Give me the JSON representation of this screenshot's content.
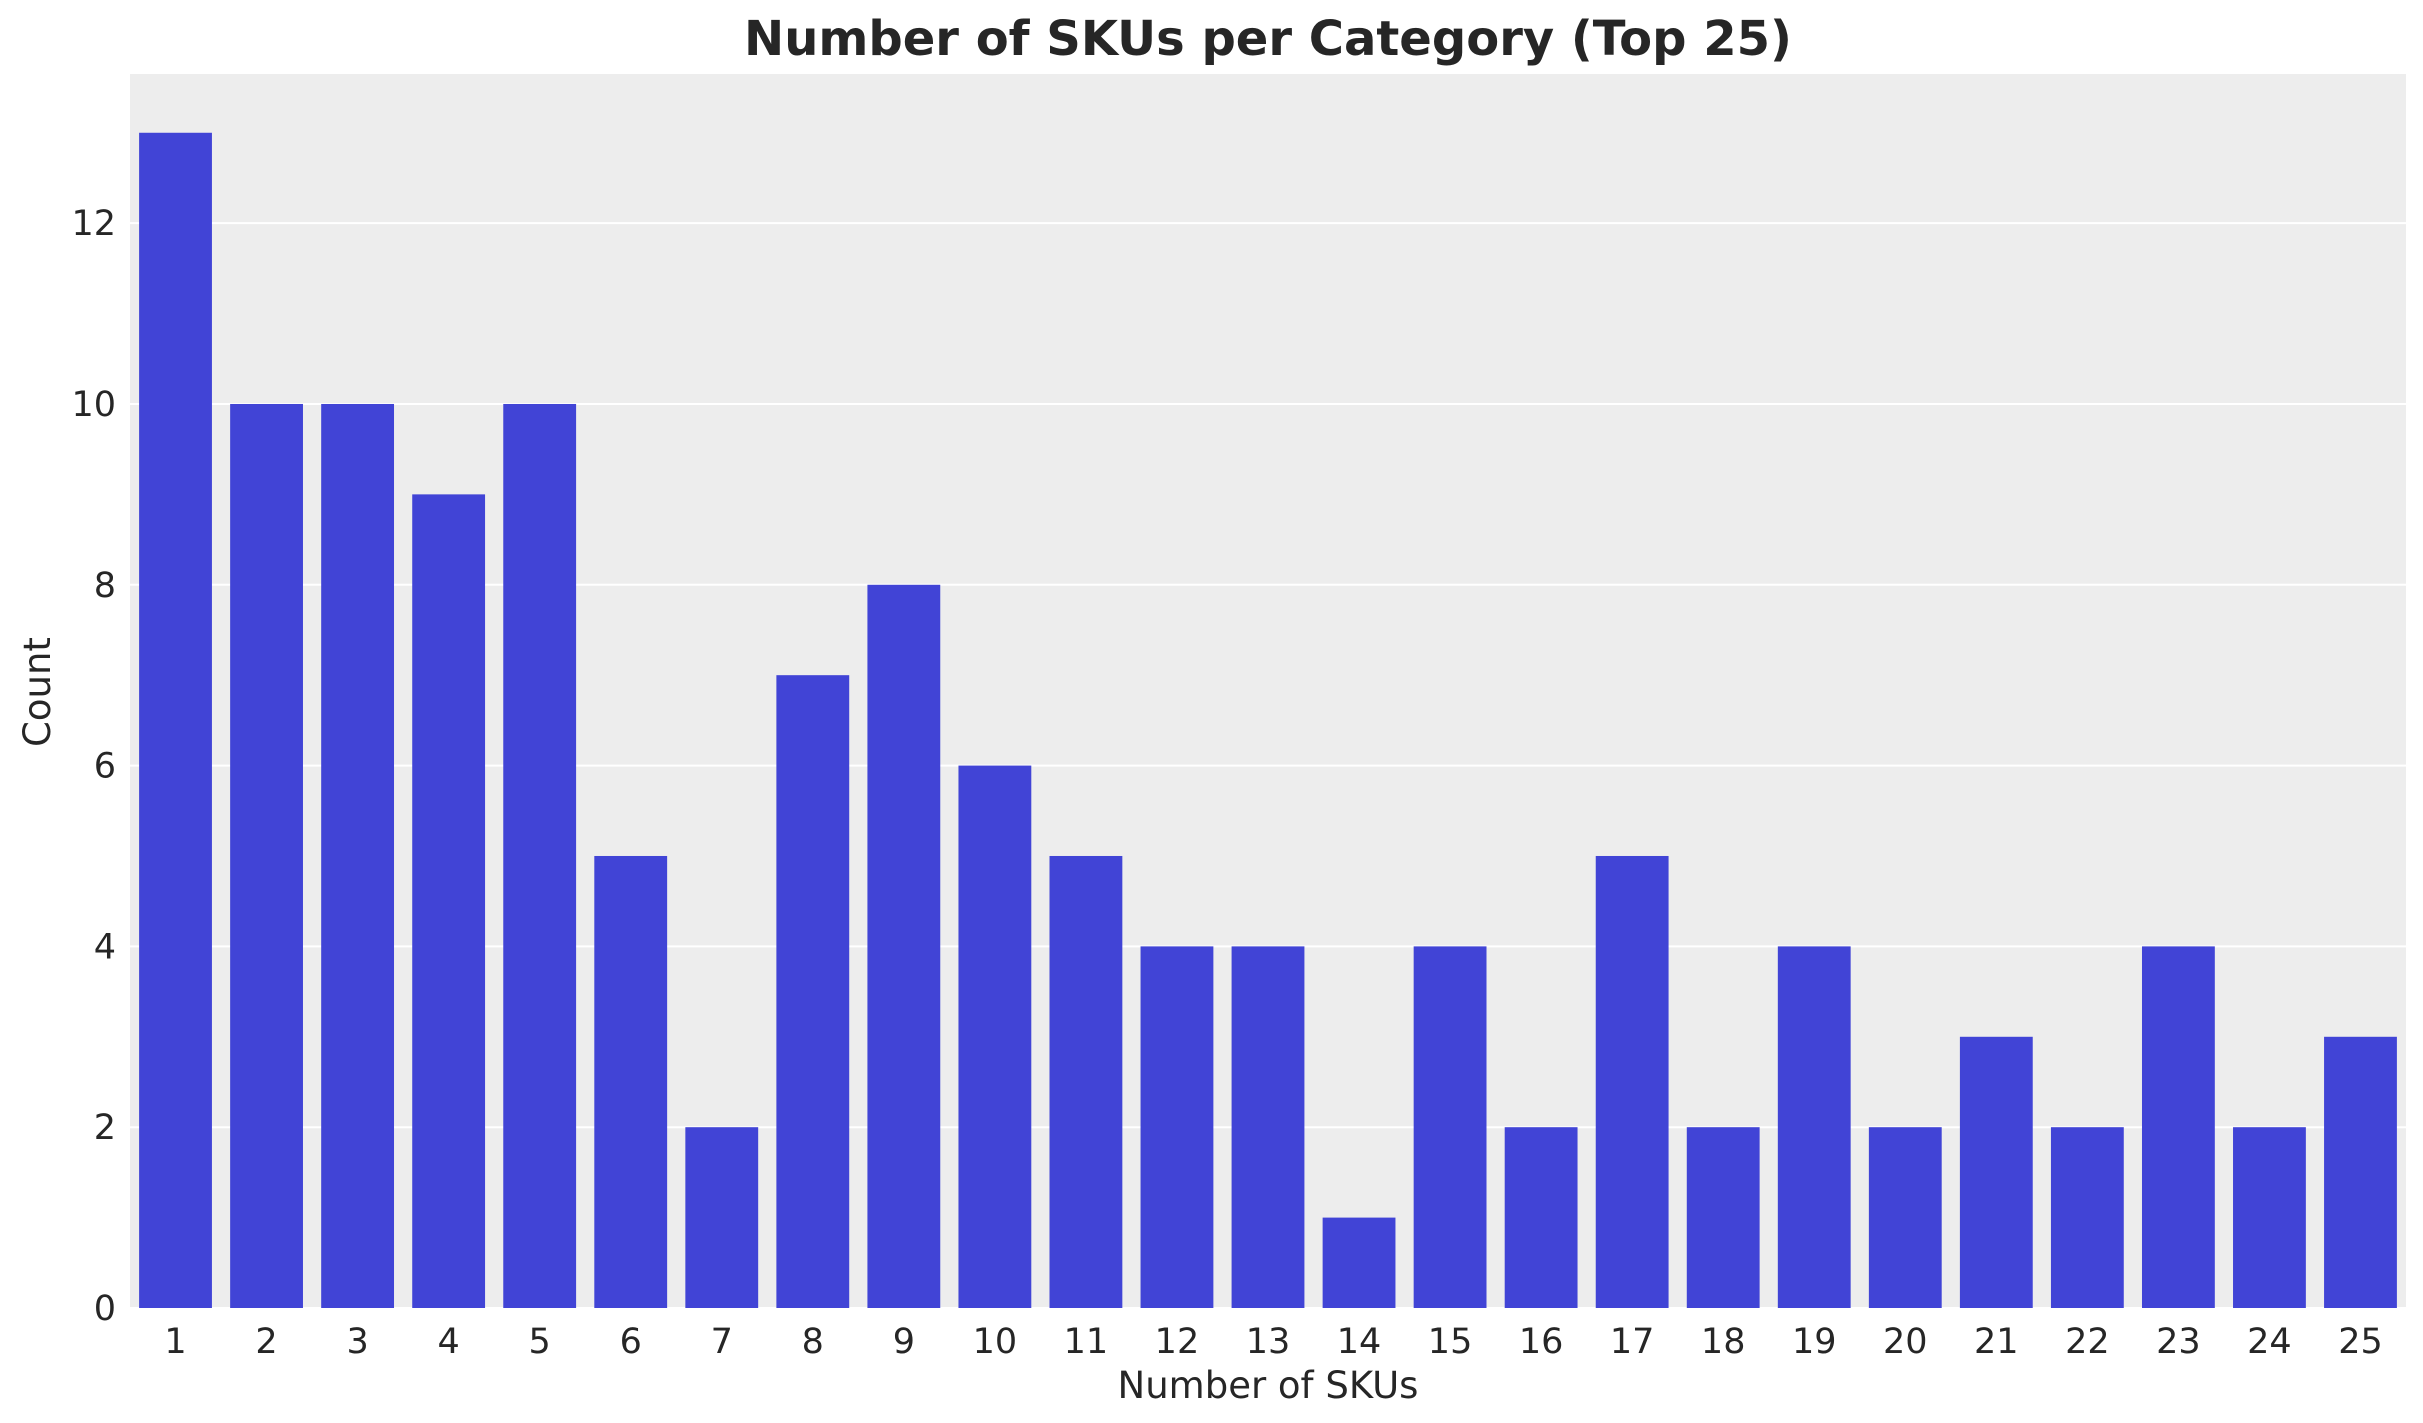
{
  "chart_data": {
    "type": "bar",
    "title": "Number of SKUs per Category (Top 25)",
    "xlabel": "Number of SKUs",
    "ylabel": "Count",
    "categories": [
      "1",
      "2",
      "3",
      "4",
      "5",
      "6",
      "7",
      "8",
      "9",
      "10",
      "11",
      "12",
      "13",
      "14",
      "15",
      "16",
      "17",
      "18",
      "19",
      "20",
      "21",
      "22",
      "23",
      "24",
      "25"
    ],
    "values": [
      13,
      10,
      10,
      9,
      10,
      5,
      2,
      7,
      8,
      6,
      5,
      4,
      4,
      1,
      4,
      2,
      5,
      2,
      4,
      2,
      3,
      2,
      4,
      2,
      3
    ],
    "ylim": [
      0,
      13.65
    ],
    "yticks": [
      0,
      2,
      4,
      6,
      8,
      10,
      12
    ],
    "grid": true,
    "colors": {
      "bar": "#4144d6",
      "plot_background": "#ededed",
      "grid": "#ffffff",
      "text": "#262626"
    }
  }
}
